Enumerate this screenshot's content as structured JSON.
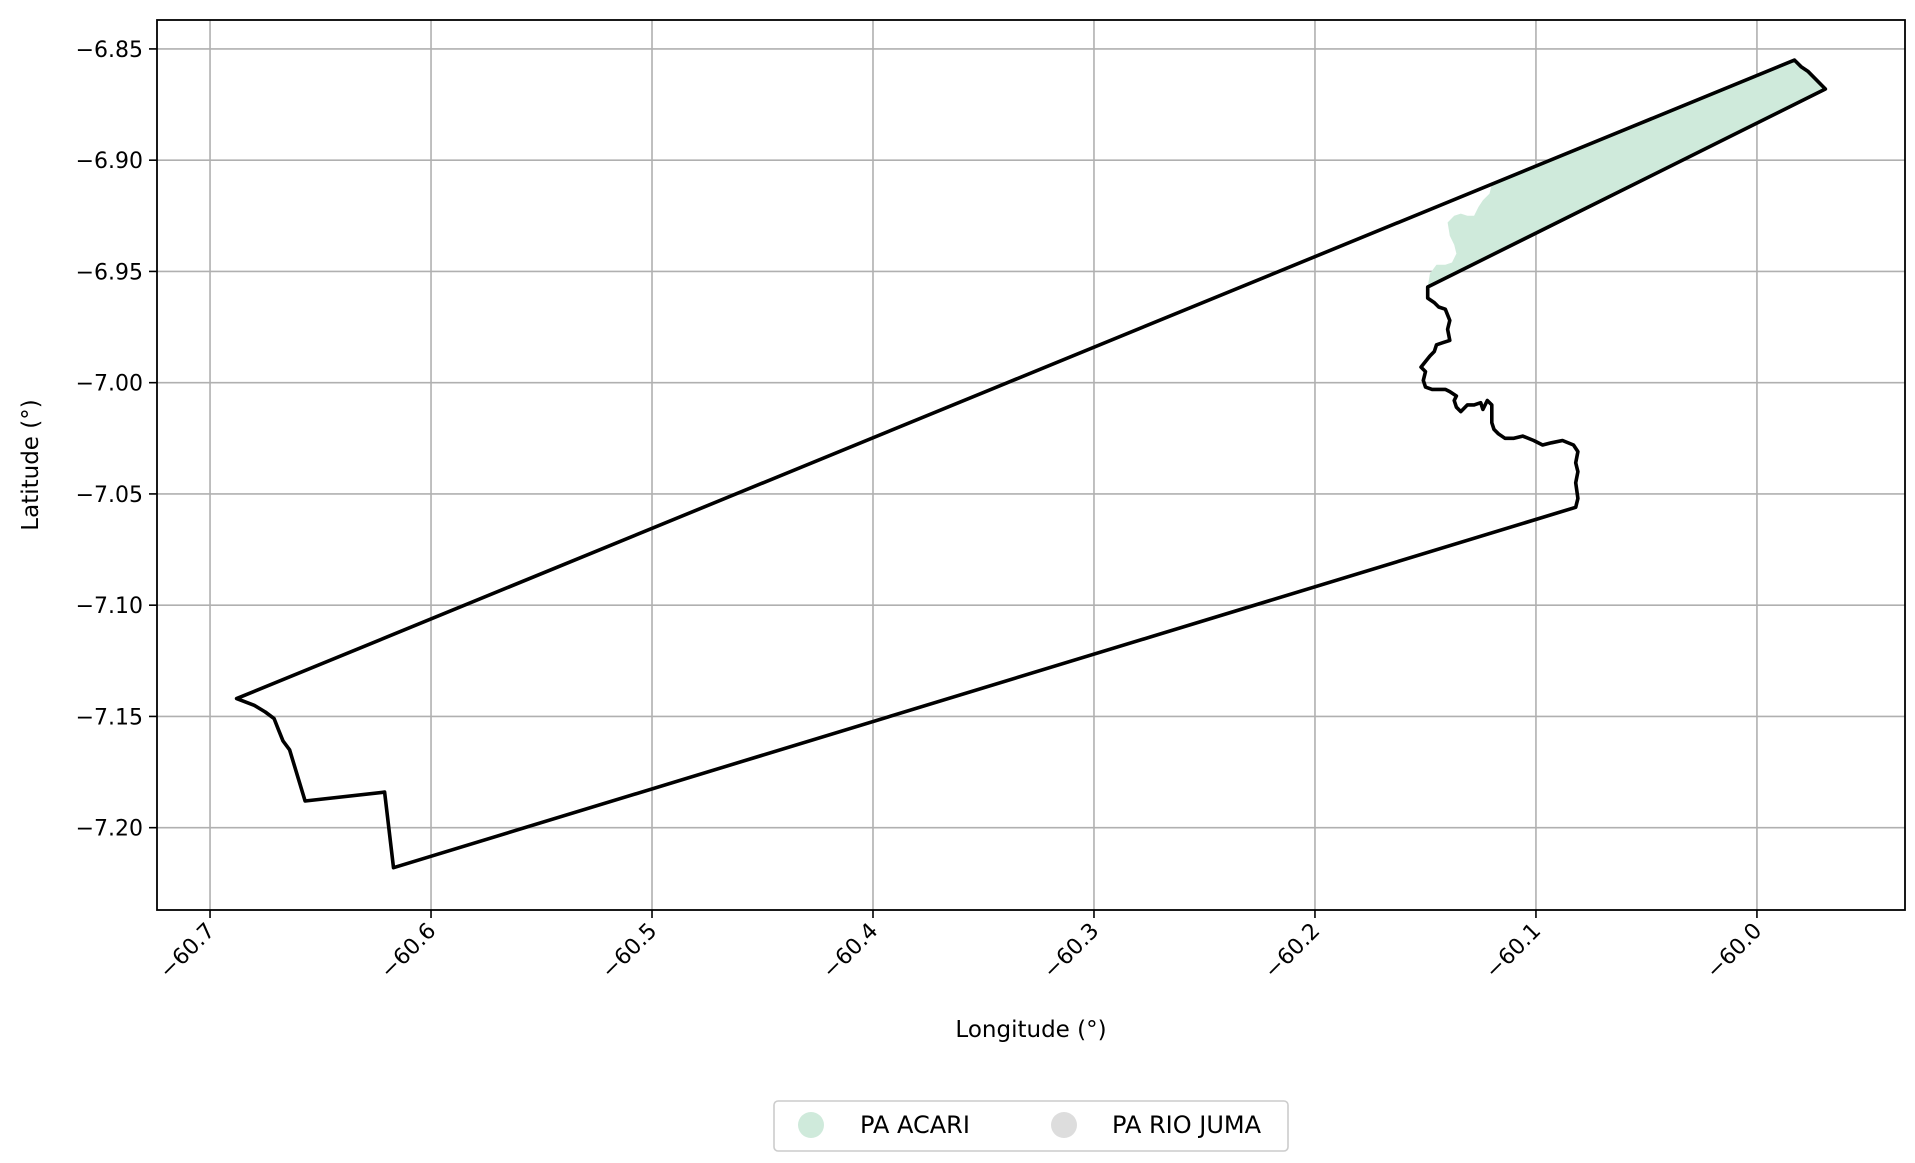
{
  "chart_data": {
    "type": "map",
    "xlabel": "Longitude (°)",
    "ylabel": "Latitude (°)",
    "xlim": [
      -60.724,
      -59.933
    ],
    "ylim": [
      -7.237,
      -6.837
    ],
    "xticks": [
      -60.7,
      -60.6,
      -60.5,
      -60.4,
      -60.3,
      -60.2,
      -60.1,
      -60.0
    ],
    "xtick_labels": [
      "−60.7",
      "−60.6",
      "−60.5",
      "−60.4",
      "−60.3",
      "−60.2",
      "−60.1",
      "−60.0"
    ],
    "yticks": [
      -6.85,
      -6.9,
      -6.95,
      -7.0,
      -7.05,
      -7.1,
      -7.15,
      -7.2
    ],
    "ytick_labels": [
      "−6.85",
      "−6.90",
      "−6.95",
      "−7.00",
      "−7.05",
      "−7.10",
      "−7.15",
      "−7.20"
    ],
    "grid": true,
    "legend_position": "bottom-center",
    "colors": {
      "acari_fill": "#cfeadb",
      "rio_juma_marker": "#dddddd",
      "outline": "#000000",
      "grid": "#b0b0b0"
    },
    "legend": [
      {
        "label": "PA ACARI",
        "color": "#cfeadb"
      },
      {
        "label": "PA RIO JUMA",
        "color": "#dddddd"
      }
    ],
    "regions": [
      {
        "label": "PA ACARI",
        "fill": "#cfeadb",
        "coords": [
          [
            -60.149,
            -6.957
          ],
          [
            -60.148,
            -6.951
          ],
          [
            -60.145,
            -6.947
          ],
          [
            -60.141,
            -6.947
          ],
          [
            -60.138,
            -6.946
          ],
          [
            -60.136,
            -6.942
          ],
          [
            -60.137,
            -6.938
          ],
          [
            -60.139,
            -6.934
          ],
          [
            -60.14,
            -6.928
          ],
          [
            -60.137,
            -6.925
          ],
          [
            -60.134,
            -6.924
          ],
          [
            -60.131,
            -6.925
          ],
          [
            -60.128,
            -6.925
          ],
          [
            -60.126,
            -6.921
          ],
          [
            -60.124,
            -6.918
          ],
          [
            -60.121,
            -6.915
          ],
          [
            -60.12,
            -6.911
          ],
          [
            -60.1,
            -6.902
          ],
          [
            -59.983,
            -6.855
          ],
          [
            -59.98,
            -6.858
          ],
          [
            -59.977,
            -6.86
          ],
          [
            -59.969,
            -6.868
          ]
        ]
      }
    ],
    "boundary": {
      "label": "PA RIO JUMA",
      "stroke": "#000000",
      "coords": [
        [
          -60.688,
          -7.142
        ],
        [
          -60.68,
          -7.145
        ],
        [
          -60.675,
          -7.148
        ],
        [
          -60.671,
          -7.151
        ],
        [
          -60.669,
          -7.156
        ],
        [
          -60.667,
          -7.161
        ],
        [
          -60.664,
          -7.165
        ],
        [
          -60.657,
          -7.188
        ],
        [
          -60.621,
          -7.184
        ],
        [
          -60.617,
          -7.218
        ],
        [
          -60.082,
          -7.056
        ],
        [
          -60.081,
          -7.052
        ],
        [
          -60.082,
          -7.045
        ],
        [
          -60.081,
          -7.04
        ],
        [
          -60.082,
          -7.036
        ],
        [
          -60.081,
          -7.031
        ],
        [
          -60.083,
          -7.028
        ],
        [
          -60.088,
          -7.026
        ],
        [
          -60.093,
          -7.027
        ],
        [
          -60.097,
          -7.028
        ],
        [
          -60.101,
          -7.026
        ],
        [
          -60.106,
          -7.024
        ],
        [
          -60.11,
          -7.025
        ],
        [
          -60.114,
          -7.025
        ],
        [
          -60.117,
          -7.023
        ],
        [
          -60.119,
          -7.021
        ],
        [
          -60.12,
          -7.018
        ],
        [
          -60.12,
          -7.014
        ],
        [
          -60.12,
          -7.01
        ],
        [
          -60.122,
          -7.008
        ],
        [
          -60.124,
          -7.012
        ],
        [
          -60.125,
          -7.009
        ],
        [
          -60.128,
          -7.01
        ],
        [
          -60.131,
          -7.01
        ],
        [
          -60.134,
          -7.013
        ],
        [
          -60.136,
          -7.011
        ],
        [
          -60.137,
          -7.008
        ],
        [
          -60.136,
          -7.006
        ],
        [
          -60.139,
          -7.004
        ],
        [
          -60.141,
          -7.003
        ],
        [
          -60.144,
          -7.003
        ],
        [
          -60.147,
          -7.003
        ],
        [
          -60.15,
          -7.002
        ],
        [
          -60.151,
          -6.999
        ],
        [
          -60.15,
          -6.995
        ],
        [
          -60.152,
          -6.993
        ],
        [
          -60.148,
          -6.988
        ],
        [
          -60.146,
          -6.986
        ],
        [
          -60.145,
          -6.983
        ],
        [
          -60.142,
          -6.982
        ],
        [
          -60.139,
          -6.981
        ],
        [
          -60.14,
          -6.976
        ],
        [
          -60.139,
          -6.972
        ],
        [
          -60.141,
          -6.967
        ],
        [
          -60.144,
          -6.966
        ],
        [
          -60.146,
          -6.964
        ],
        [
          -60.149,
          -6.962
        ],
        [
          -60.149,
          -6.957
        ],
        [
          -59.969,
          -6.868
        ],
        [
          -59.977,
          -6.86
        ],
        [
          -59.98,
          -6.858
        ],
        [
          -59.983,
          -6.855
        ],
        [
          -60.688,
          -7.142
        ]
      ]
    }
  }
}
